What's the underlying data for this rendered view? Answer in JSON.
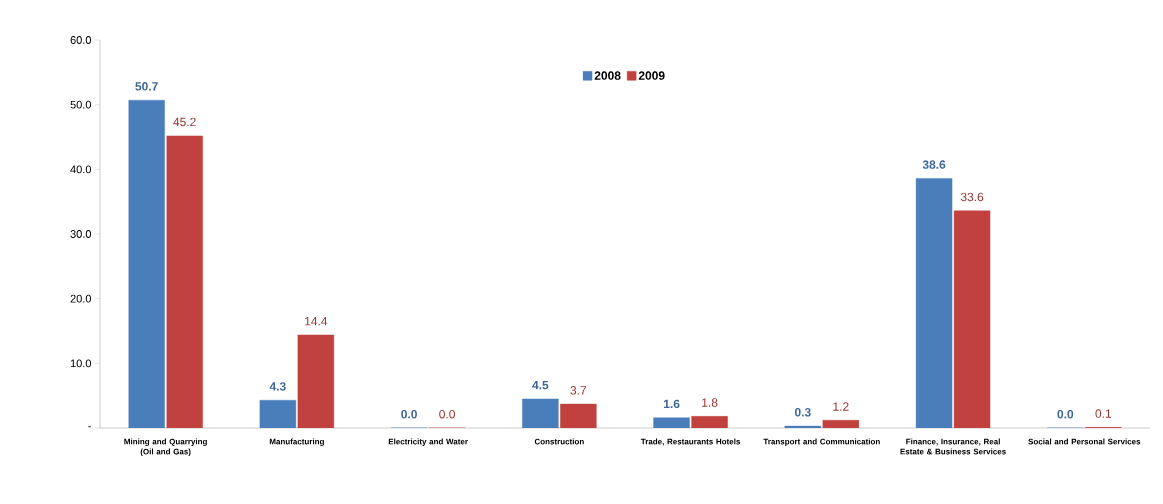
{
  "chart_data": {
    "type": "bar",
    "categories": [
      "Mining and Quarrying (Oil and Gas)",
      "Manufacturing",
      "Electricity and Water",
      "Construction",
      "Trade, Restaurants Hotels",
      "Transport and Communication",
      "Finance,  Insurance, Real Estate & Business Services",
      "Social and Personal Services"
    ],
    "series": [
      {
        "name": "2008",
        "color": "#4a7ebb",
        "values": [
          50.7,
          4.3,
          0.0,
          4.5,
          1.6,
          0.3,
          38.6,
          0.0
        ],
        "value_labels": [
          "50.7",
          "4.3",
          "0.0",
          "4.5",
          "1.6",
          "0.3",
          "38.6",
          "0.0"
        ]
      },
      {
        "name": "2009",
        "color": "#c0413d",
        "values": [
          45.2,
          14.4,
          0.0,
          3.7,
          1.8,
          1.2,
          33.6,
          0.1
        ],
        "value_labels": [
          "45.2",
          "14.4",
          "0.0",
          "3.7",
          "1.8",
          "1.2",
          "33.6",
          "0.1"
        ]
      }
    ],
    "ylim": [
      0,
      60
    ],
    "yticks": [
      {
        "value": 0,
        "label": "-"
      },
      {
        "value": 10,
        "label": "10.0"
      },
      {
        "value": 20,
        "label": "20.0"
      },
      {
        "value": 30,
        "label": "30.0"
      },
      {
        "value": 40,
        "label": "40.0"
      },
      {
        "value": 50,
        "label": "50.0"
      },
      {
        "value": 60,
        "label": "60.0"
      }
    ],
    "legend": "top",
    "grid": false
  }
}
